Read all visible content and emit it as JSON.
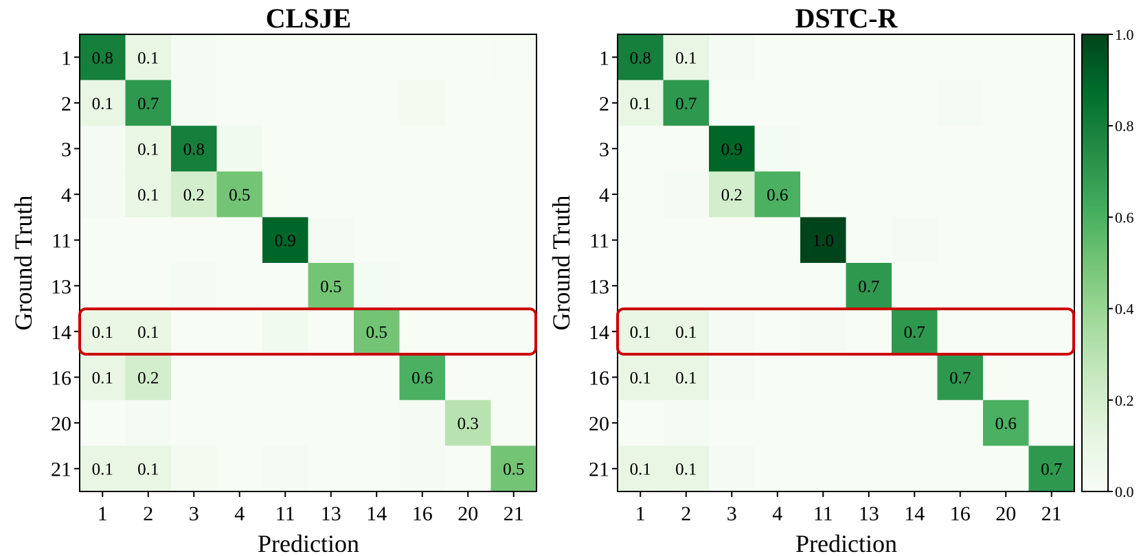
{
  "chart_data": [
    {
      "type": "heatmap",
      "title": "CLSJE",
      "xlabel": "Prediction",
      "ylabel": "Ground Truth",
      "x_categories": [
        "1",
        "2",
        "3",
        "4",
        "11",
        "13",
        "14",
        "16",
        "20",
        "21"
      ],
      "y_categories": [
        "1",
        "2",
        "3",
        "4",
        "11",
        "13",
        "14",
        "16",
        "20",
        "21"
      ],
      "values": [
        [
          0.8,
          0.1,
          0.02,
          0.0,
          0.0,
          0.0,
          0.0,
          0.0,
          0.0,
          0.01
        ],
        [
          0.1,
          0.7,
          0.02,
          0.0,
          0.0,
          0.0,
          0.0,
          0.03,
          0.0,
          0.0
        ],
        [
          0.02,
          0.1,
          0.8,
          0.04,
          0.0,
          0.0,
          0.0,
          0.0,
          0.0,
          0.0
        ],
        [
          0.02,
          0.1,
          0.2,
          0.5,
          0.0,
          0.0,
          0.0,
          0.0,
          0.0,
          0.0
        ],
        [
          0.0,
          0.0,
          0.0,
          0.0,
          0.9,
          0.02,
          0.0,
          0.0,
          0.0,
          0.0
        ],
        [
          0.0,
          0.0,
          0.02,
          0.0,
          0.0,
          0.5,
          0.02,
          0.0,
          0.0,
          0.0
        ],
        [
          0.1,
          0.1,
          0.0,
          0.0,
          0.04,
          0.0,
          0.5,
          0.0,
          0.0,
          0.0
        ],
        [
          0.1,
          0.2,
          0.0,
          0.0,
          0.0,
          0.0,
          0.0,
          0.6,
          0.0,
          0.0
        ],
        [
          0.0,
          0.02,
          0.0,
          0.0,
          0.0,
          0.0,
          0.0,
          0.02,
          0.3,
          0.0
        ],
        [
          0.1,
          0.1,
          0.03,
          0.0,
          0.02,
          0.0,
          0.0,
          0.02,
          0.0,
          0.5
        ]
      ],
      "cell_labels": [
        [
          "0.8",
          "0.1",
          "",
          "",
          "",
          "",
          "",
          "",
          "",
          ""
        ],
        [
          "0.1",
          "0.7",
          "",
          "",
          "",
          "",
          "",
          "",
          "",
          ""
        ],
        [
          "",
          "0.1",
          "0.8",
          "",
          "",
          "",
          "",
          "",
          "",
          ""
        ],
        [
          "",
          "0.1",
          "0.2",
          "0.5",
          "",
          "",
          "",
          "",
          "",
          ""
        ],
        [
          "",
          "",
          "",
          "",
          "0.9",
          "",
          "",
          "",
          "",
          ""
        ],
        [
          "",
          "",
          "",
          "",
          "",
          "0.5",
          "",
          "",
          "",
          ""
        ],
        [
          "0.1",
          "0.1",
          "",
          "",
          "",
          "",
          "0.5",
          "",
          "",
          ""
        ],
        [
          "0.1",
          "0.2",
          "",
          "",
          "",
          "",
          "",
          "0.6",
          "",
          ""
        ],
        [
          "",
          "",
          "",
          "",
          "",
          "",
          "",
          "",
          "0.3",
          ""
        ],
        [
          "0.1",
          "0.1",
          "",
          "",
          "",
          "",
          "",
          "",
          "",
          "0.5"
        ]
      ],
      "highlight_row": "14"
    },
    {
      "type": "heatmap",
      "title": "DSTC-R",
      "xlabel": "Prediction",
      "ylabel": "Ground Truth",
      "x_categories": [
        "1",
        "2",
        "3",
        "4",
        "11",
        "13",
        "14",
        "16",
        "20",
        "21"
      ],
      "y_categories": [
        "1",
        "2",
        "3",
        "4",
        "11",
        "13",
        "14",
        "16",
        "20",
        "21"
      ],
      "values": [
        [
          0.8,
          0.1,
          0.02,
          0.0,
          0.0,
          0.0,
          0.0,
          0.0,
          0.0,
          0.0
        ],
        [
          0.1,
          0.7,
          0.0,
          0.0,
          0.0,
          0.0,
          0.0,
          0.02,
          0.0,
          0.0
        ],
        [
          0.0,
          0.0,
          0.9,
          0.02,
          0.0,
          0.0,
          0.0,
          0.0,
          0.0,
          0.0
        ],
        [
          0.0,
          0.02,
          0.2,
          0.6,
          0.0,
          0.0,
          0.0,
          0.0,
          0.0,
          0.0
        ],
        [
          0.0,
          0.0,
          0.0,
          0.0,
          1.0,
          0.0,
          0.02,
          0.0,
          0.0,
          0.0
        ],
        [
          0.0,
          0.0,
          0.0,
          0.0,
          0.0,
          0.7,
          0.0,
          0.0,
          0.0,
          0.0
        ],
        [
          0.1,
          0.1,
          0.02,
          0.0,
          0.02,
          0.0,
          0.7,
          0.0,
          0.0,
          0.0
        ],
        [
          0.1,
          0.1,
          0.02,
          0.0,
          0.0,
          0.0,
          0.0,
          0.7,
          0.0,
          0.0
        ],
        [
          0.0,
          0.02,
          0.0,
          0.0,
          0.0,
          0.0,
          0.0,
          0.0,
          0.6,
          0.0
        ],
        [
          0.1,
          0.1,
          0.02,
          0.0,
          0.0,
          0.0,
          0.0,
          0.0,
          0.0,
          0.7
        ]
      ],
      "cell_labels": [
        [
          "0.8",
          "0.1",
          "",
          "",
          "",
          "",
          "",
          "",
          "",
          ""
        ],
        [
          "0.1",
          "0.7",
          "",
          "",
          "",
          "",
          "",
          "",
          "",
          ""
        ],
        [
          "",
          "",
          "0.9",
          "",
          "",
          "",
          "",
          "",
          "",
          ""
        ],
        [
          "",
          "",
          "0.2",
          "0.6",
          "",
          "",
          "",
          "",
          "",
          ""
        ],
        [
          "",
          "",
          "",
          "",
          "1.0",
          "",
          "",
          "",
          "",
          ""
        ],
        [
          "",
          "",
          "",
          "",
          "",
          "0.7",
          "",
          "",
          "",
          ""
        ],
        [
          "0.1",
          "0.1",
          "",
          "",
          "",
          "",
          "0.7",
          "",
          "",
          ""
        ],
        [
          "0.1",
          "0.1",
          "",
          "",
          "",
          "",
          "",
          "0.7",
          "",
          ""
        ],
        [
          "",
          "",
          "",
          "",
          "",
          "",
          "",
          "",
          "0.6",
          ""
        ],
        [
          "0.1",
          "0.1",
          "",
          "",
          "",
          "",
          "",
          "",
          "",
          "0.7"
        ]
      ],
      "highlight_row": "14"
    }
  ],
  "colorbar": {
    "colormap": "Greens",
    "range": [
      0.0,
      1.0
    ],
    "ticks": [
      "0.0",
      "0.2",
      "0.4",
      "0.6",
      "0.8",
      "1.0"
    ]
  },
  "colors": {
    "highlight": "#cc0000",
    "cmap_low": "#f7fcf5",
    "cmap_high": "#00441b"
  }
}
